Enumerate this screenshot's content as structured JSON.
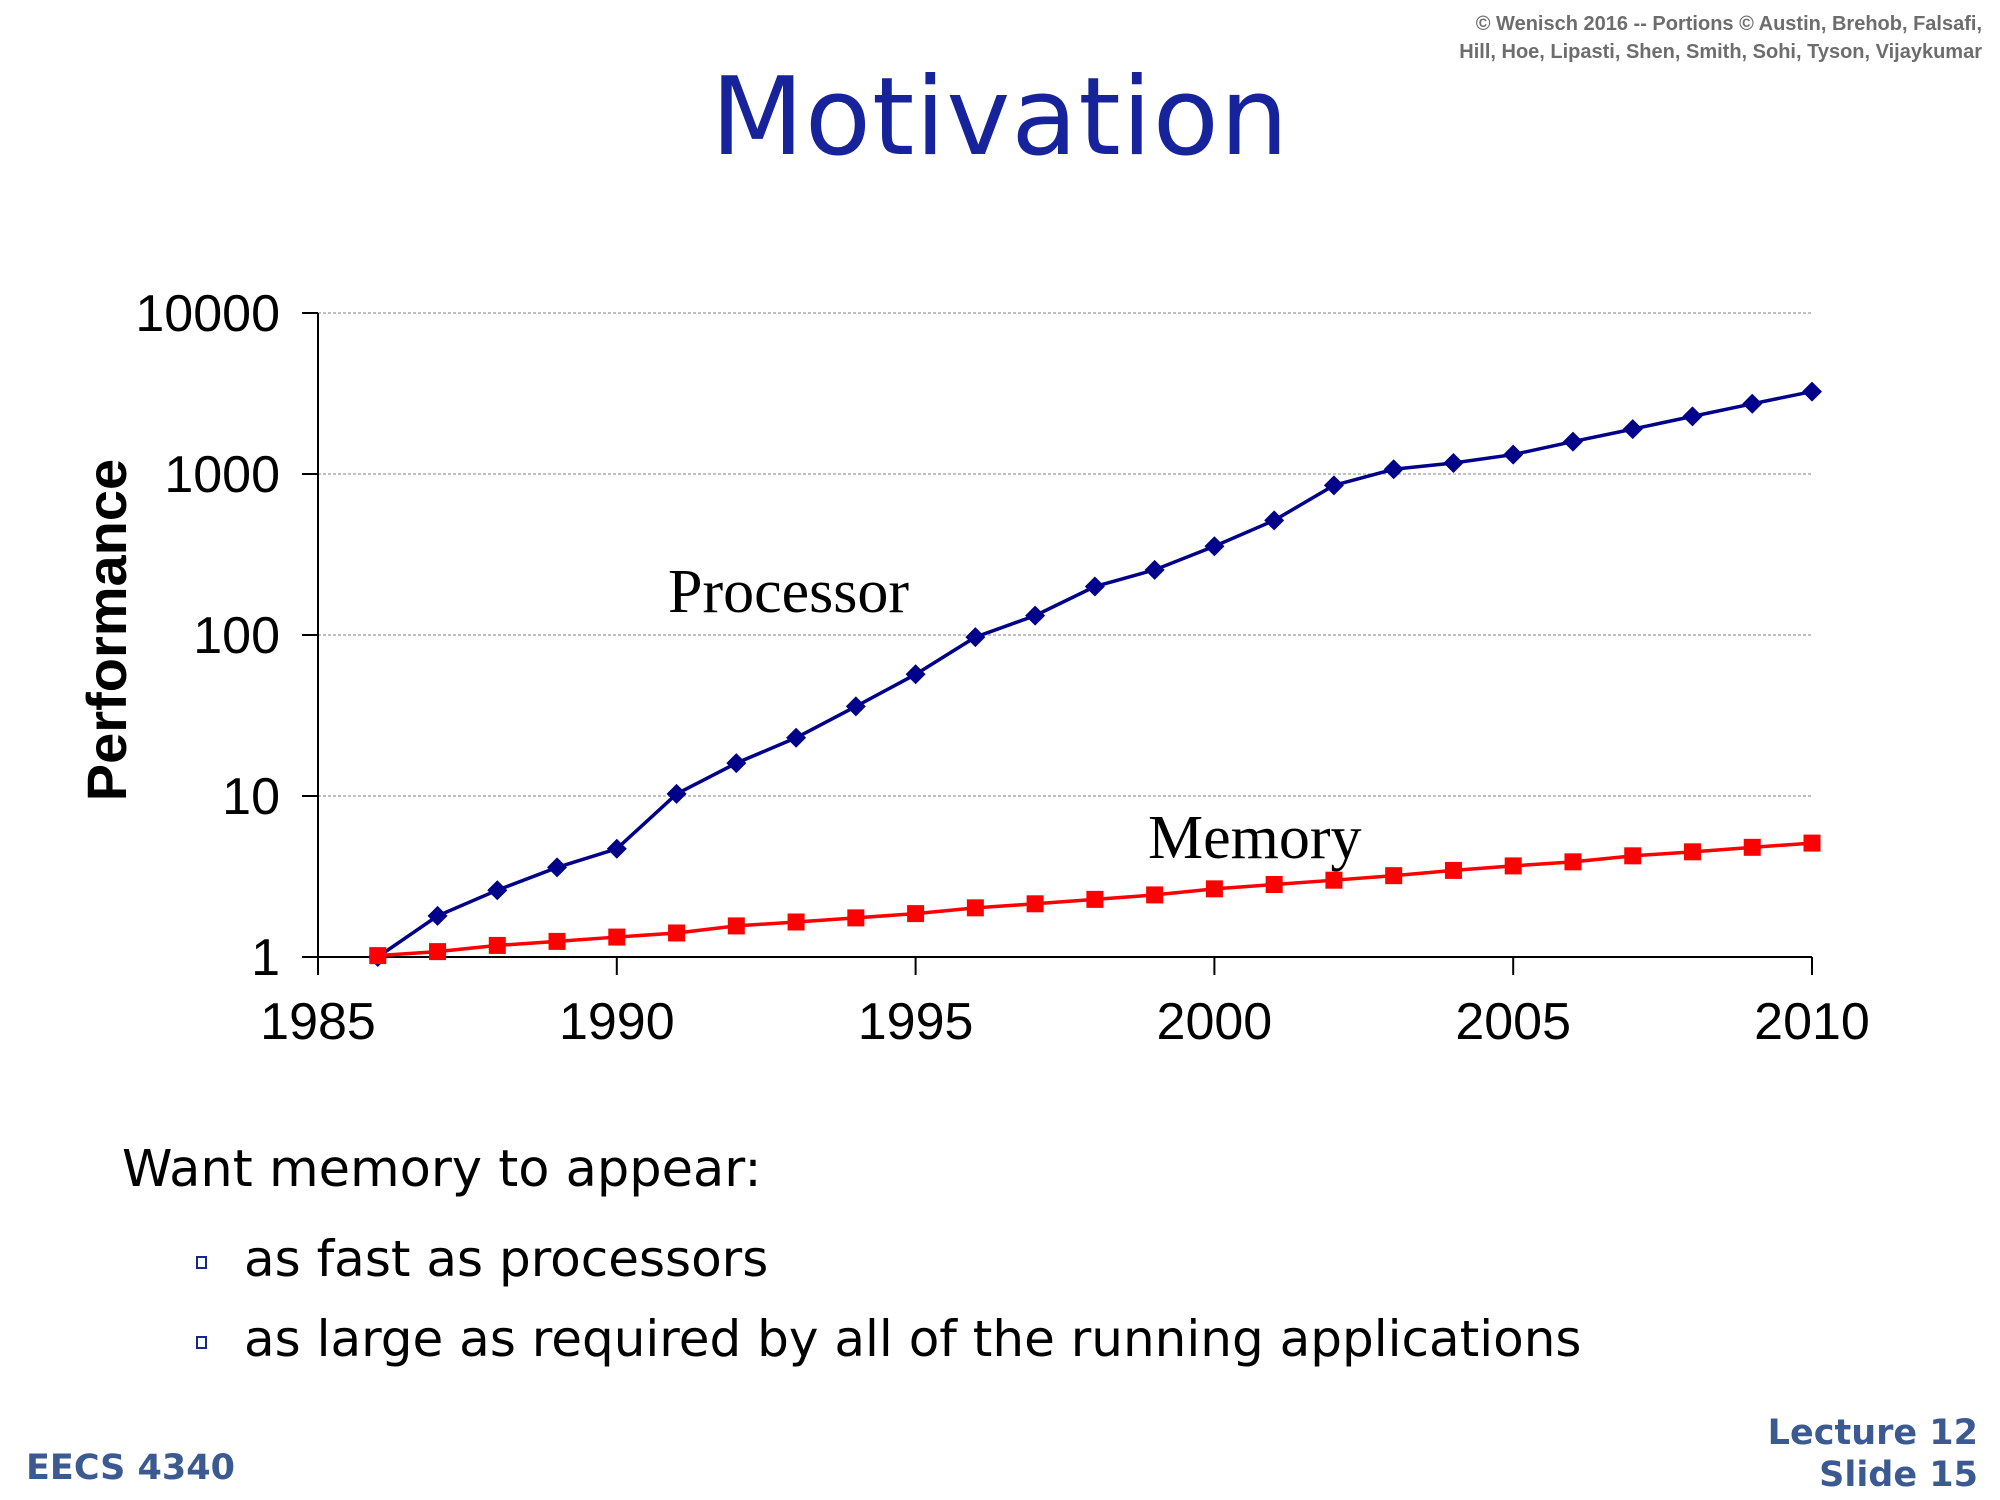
{
  "header": {
    "copyright_line1": "© Wenisch 2016 -- Portions © Austin, Brehob, Falsafi,",
    "copyright_line2": "Hill, Hoe, Lipasti, Shen, Smith, Sohi, Tyson, Vijaykumar"
  },
  "slide_title": "Motivation",
  "chart_data": {
    "type": "line",
    "ylabel": "Performance",
    "xlabel": "",
    "y_scale": "log",
    "ylim": [
      1,
      10000
    ],
    "xlim": [
      1985,
      2010
    ],
    "x_ticks": [
      "1985",
      "1990",
      "1995",
      "2000",
      "2005",
      "2010"
    ],
    "y_ticks": [
      "1",
      "10",
      "100",
      "1000",
      "10000"
    ],
    "grid": "horizontal dashed",
    "x": [
      1986,
      1987,
      1988,
      1989,
      1990,
      1991,
      1992,
      1993,
      1994,
      1995,
      1996,
      1997,
      1998,
      1999,
      2000,
      2001,
      2002,
      2003,
      2004,
      2005,
      2006,
      2007,
      2008,
      2009,
      2010
    ],
    "series": [
      {
        "name": "Processor",
        "color": "#00008b",
        "marker": "diamond",
        "values": [
          1,
          1.8,
          2.6,
          3.6,
          4.7,
          10.3,
          16,
          23,
          36,
          57,
          97,
          132,
          200,
          254,
          356,
          515,
          850,
          1070,
          1170,
          1320,
          1590,
          1900,
          2280,
          2730,
          3250
        ]
      },
      {
        "name": "Memory",
        "color": "#ff0000",
        "marker": "square",
        "values": [
          1.02,
          1.08,
          1.18,
          1.25,
          1.33,
          1.41,
          1.56,
          1.65,
          1.75,
          1.86,
          2.02,
          2.14,
          2.28,
          2.43,
          2.65,
          2.82,
          3.0,
          3.2,
          3.45,
          3.68,
          3.9,
          4.25,
          4.5,
          4.8,
          5.1
        ]
      }
    ]
  },
  "body": {
    "heading": "Want memory to appear:",
    "bullets": [
      "as fast as processors",
      "as large as required by all of the running applications"
    ]
  },
  "footer": {
    "course": "EECS 4340",
    "lecture": "Lecture 12",
    "slide": "Slide 15"
  }
}
